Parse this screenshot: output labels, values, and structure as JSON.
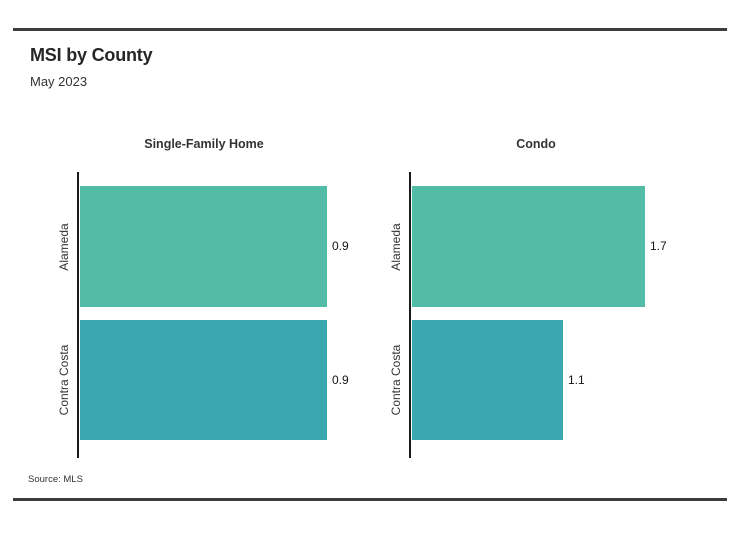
{
  "header": {
    "title": "MSI by County",
    "subtitle": "May 2023"
  },
  "source_note": "Source: MLS",
  "colors": {
    "alameda_bar": "#52bca6",
    "contra_costa_bar": "#3aa6ae",
    "axis": "#1a1a1a",
    "rule": "#3d3d3d",
    "text": "#2b2b2b"
  },
  "chart_data": {
    "type": "bar",
    "orientation": "horizontal",
    "title": "MSI by County",
    "subtitle": "May 2023",
    "categories": [
      "Alameda",
      "Contra Costa"
    ],
    "panels": [
      {
        "title": "Single-Family Home",
        "values": [
          0.9,
          0.9
        ],
        "value_labels": [
          "0.9",
          "0.9"
        ],
        "xlim": [
          0,
          0.9
        ]
      },
      {
        "title": "Condo",
        "values": [
          1.7,
          1.1
        ],
        "value_labels": [
          "1.7",
          "1.1"
        ],
        "xlim": [
          0,
          1.8
        ]
      }
    ],
    "bar_colors": [
      "#52bca6",
      "#3aa6ae"
    ],
    "grid": false,
    "legend": false,
    "data_labels": "outside-end"
  }
}
